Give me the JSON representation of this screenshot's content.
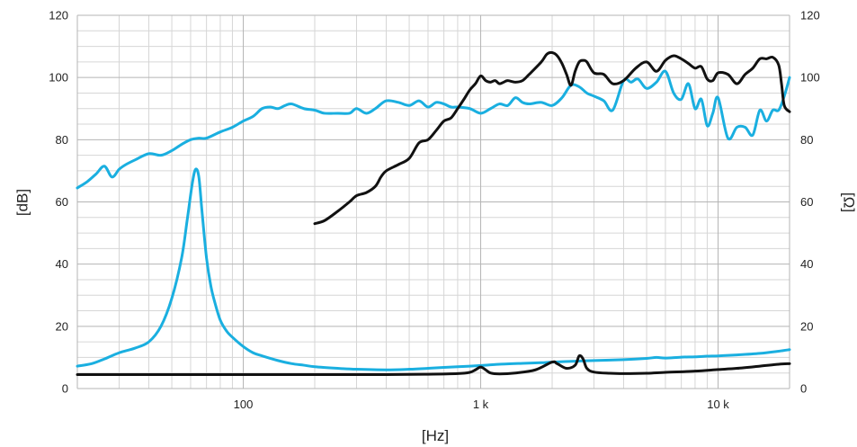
{
  "chart_data": {
    "type": "line",
    "xlabel": "[Hz]",
    "ylabel_left": "[dB]",
    "ylabel_right": "[Ω]",
    "x_scale": "log",
    "xlim": [
      20,
      20000
    ],
    "ylim": [
      0,
      120
    ],
    "y2lim": [
      0,
      120
    ],
    "grid": true,
    "x_tick_labels": [
      {
        "value": 100,
        "label": "100"
      },
      {
        "value": 1000,
        "label": "1 k"
      },
      {
        "value": 10000,
        "label": "10 k"
      }
    ],
    "y_tick_labels": [
      "0",
      "20",
      "40",
      "60",
      "80",
      "100",
      "120"
    ],
    "y2_tick_labels": [
      "0",
      "20",
      "40",
      "60",
      "80",
      "100",
      "120"
    ],
    "series": [
      {
        "color": "#1aafe0",
        "axis": "left",
        "x": [
          20,
          22,
          24,
          26,
          28,
          30,
          32,
          35,
          40,
          45,
          50,
          55,
          60,
          65,
          70,
          80,
          90,
          100,
          110,
          120,
          130,
          140,
          150,
          160,
          180,
          200,
          220,
          250,
          280,
          300,
          330,
          360,
          400,
          450,
          500,
          550,
          600,
          650,
          700,
          750,
          800,
          900,
          1000,
          1100,
          1200,
          1300,
          1400,
          1500,
          1600,
          1800,
          2000,
          2200,
          2400,
          2600,
          2800,
          3000,
          3300,
          3600,
          4000,
          4300,
          4600,
          5000,
          5500,
          6000,
          6500,
          7000,
          7500,
          8000,
          8500,
          9000,
          9500,
          10000,
          11000,
          12000,
          13000,
          14000,
          15000,
          16000,
          17000,
          18000,
          19000,
          20000
        ],
        "y": [
          64.5,
          66.5,
          69,
          71.5,
          68,
          70.5,
          72,
          73.5,
          75.5,
          75,
          76.5,
          78.5,
          80,
          80.5,
          80.5,
          82.5,
          84,
          86,
          87.5,
          90,
          90.5,
          90,
          91,
          91.5,
          90,
          89.5,
          88.5,
          88.5,
          88.5,
          90,
          88.5,
          90,
          92.5,
          92,
          91,
          92.5,
          90.5,
          92,
          91.5,
          90.5,
          90.5,
          90,
          88.5,
          90,
          91.5,
          91,
          93.5,
          92,
          91.5,
          92,
          91,
          93.5,
          97.5,
          97,
          95,
          94,
          92.5,
          89.5,
          99,
          98.5,
          99.5,
          96.5,
          98.5,
          102,
          95,
          93,
          98,
          90,
          93,
          84.5,
          88.5,
          93.5,
          80.5,
          84,
          84,
          81.5,
          89.5,
          86,
          89.5,
          89.5,
          94,
          100
        ]
      },
      {
        "color": "#111111",
        "axis": "left",
        "x": [
          200,
          220,
          250,
          280,
          300,
          330,
          360,
          380,
          400,
          450,
          500,
          550,
          600,
          650,
          700,
          750,
          800,
          850,
          900,
          950,
          1000,
          1050,
          1100,
          1150,
          1200,
          1250,
          1300,
          1400,
          1500,
          1600,
          1800,
          1900,
          2000,
          2100,
          2200,
          2300,
          2400,
          2500,
          2600,
          2700,
          2800,
          3000,
          3300,
          3600,
          4000,
          4500,
          5000,
          5500,
          6000,
          6500,
          7000,
          7500,
          8000,
          8500,
          9000,
          9500,
          10000,
          11000,
          12000,
          13000,
          14000,
          15000,
          16000,
          17000,
          18000,
          18500,
          19000,
          20000
        ],
        "y": [
          53,
          54,
          57,
          60,
          62,
          63,
          65,
          68,
          70,
          72,
          74,
          79,
          80,
          83,
          86,
          87,
          90,
          93,
          96,
          98,
          100.5,
          99,
          98.5,
          99,
          98,
          98.5,
          99,
          98.5,
          99,
          101,
          105,
          107.5,
          108,
          107,
          104.5,
          101,
          97.5,
          102,
          105,
          105.5,
          105,
          101.5,
          101,
          98,
          99,
          103,
          105,
          102,
          105.5,
          107,
          106,
          104.5,
          103,
          103.5,
          99.5,
          99,
          101.5,
          101,
          98,
          101,
          103,
          106,
          106,
          106.5,
          104,
          98,
          91,
          89
        ]
      },
      {
        "color": "#1aafe0",
        "axis": "right",
        "x": [
          20,
          23,
          26,
          30,
          35,
          40,
          45,
          50,
          55,
          58,
          61,
          63,
          65,
          67,
          70,
          73,
          76,
          80,
          85,
          90,
          100,
          110,
          120,
          140,
          160,
          180,
          200,
          250,
          300,
          400,
          500,
          600,
          700,
          800,
          900,
          1000,
          1200,
          1500,
          1800,
          2000,
          2500,
          3000,
          4000,
          5000,
          5500,
          6000,
          7000,
          8000,
          9000,
          10000,
          12000,
          15000,
          18000,
          20000
        ],
        "y": [
          7.2,
          8,
          9.5,
          11.5,
          13,
          15,
          20,
          29,
          42,
          54,
          66,
          70.5,
          68,
          57,
          42,
          33,
          27.5,
          22,
          18.5,
          16.5,
          13.5,
          11.5,
          10.5,
          9,
          8,
          7.5,
          7,
          6.5,
          6.2,
          6,
          6.2,
          6.5,
          6.8,
          7,
          7.2,
          7.4,
          7.8,
          8.1,
          8.3,
          8.5,
          8.8,
          9,
          9.3,
          9.7,
          10,
          9.8,
          10.1,
          10.2,
          10.4,
          10.5,
          10.8,
          11.3,
          12,
          12.5
        ]
      },
      {
        "color": "#111111",
        "axis": "right",
        "x": [
          20,
          50,
          100,
          200,
          400,
          600,
          800,
          900,
          950,
          1000,
          1050,
          1100,
          1200,
          1400,
          1700,
          2000,
          2100,
          2300,
          2500,
          2600,
          2700,
          2800,
          3000,
          3500,
          4000,
          5000,
          6000,
          8000,
          10000,
          12000,
          15000,
          18000,
          20000
        ],
        "y": [
          4.5,
          4.5,
          4.5,
          4.5,
          4.5,
          4.6,
          4.8,
          5.2,
          6,
          6.9,
          6,
          5,
          4.7,
          5,
          6,
          8.5,
          8,
          6.5,
          7.5,
          10.5,
          9.5,
          6.5,
          5.3,
          4.9,
          4.8,
          4.9,
          5.2,
          5.6,
          6.1,
          6.5,
          7.2,
          7.8,
          8
        ]
      }
    ]
  }
}
